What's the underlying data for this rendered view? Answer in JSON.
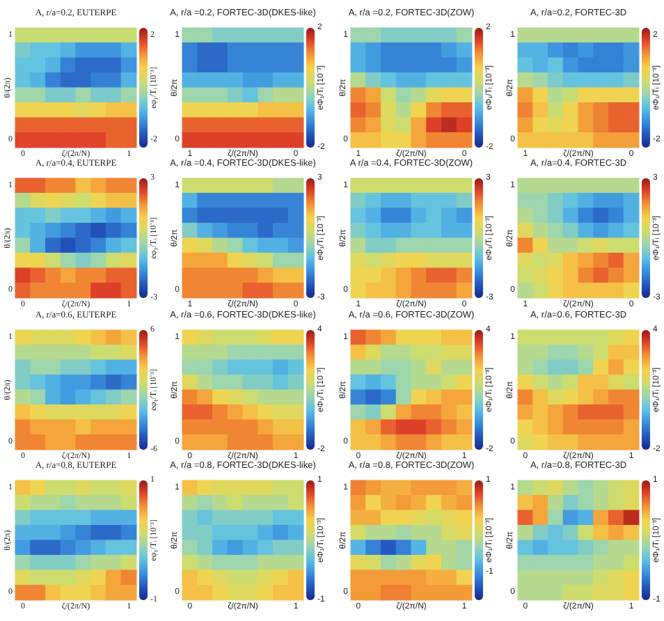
{
  "chart_data": [
    {
      "type": "heatmap",
      "title": "A, r/a=0.2, EUTERPE",
      "xlabel": "ζ/(2π/N)",
      "ylabel": "θ/(2π)",
      "clabel": "eφ₁/Tᵢ [10⁻³]",
      "categories": [
        "0",
        null,
        null,
        null,
        null,
        null,
        null,
        "1"
      ],
      "y_categories": [
        "1",
        null,
        null,
        null,
        null,
        null,
        null,
        "0"
      ],
      "clim": [
        -2.3,
        2.3
      ],
      "cticks": [
        -2,
        2
      ],
      "cells": [
        [
          0.2,
          0.2,
          0.2,
          0.2,
          0.2,
          0.2,
          0.2,
          0.2
        ],
        [
          -0.5,
          -0.7,
          -0.7,
          -0.9,
          -1.2,
          -1.2,
          -1.2,
          -0.9
        ],
        [
          -0.7,
          -0.7,
          -0.9,
          -1.4,
          -1.6,
          -1.6,
          -1.6,
          -1.2
        ],
        [
          -0.7,
          -0.9,
          -1.4,
          -1.6,
          -1.6,
          -1.4,
          -1.4,
          -0.9
        ],
        [
          -0.2,
          -0.2,
          -0.5,
          -0.5,
          -0.2,
          -0.5,
          -0.5,
          -0.2
        ],
        [
          0.7,
          0.7,
          0.7,
          0.7,
          0.5,
          0.7,
          0.9,
          0.9
        ],
        [
          1.6,
          1.6,
          1.6,
          1.6,
          1.6,
          1.6,
          1.6,
          1.6
        ],
        [
          1.8,
          1.8,
          1.8,
          1.8,
          1.8,
          1.8,
          1.6,
          1.6
        ]
      ]
    },
    {
      "type": "heatmap",
      "title": "A, r/a =0.2, FORTEC-3D(DKES-like)",
      "xlabel": "ζ/(2π/N)",
      "ylabel": "θ/2π",
      "clabel": "eΦ₁/Tᵢ [10⁻³]",
      "categories": [
        "1",
        null,
        null,
        null,
        null,
        null,
        null,
        "0"
      ],
      "y_categories": [
        "1",
        null,
        null,
        null,
        null,
        null,
        null,
        "0"
      ],
      "clim": [
        -2,
        2
      ],
      "cticks": [
        -2,
        2
      ],
      "cells": [
        [
          -0.2,
          -0.2,
          -0.4,
          -0.4,
          -0.4,
          -0.4,
          -0.4,
          -0.4
        ],
        [
          -1.2,
          -1.4,
          -1.4,
          -1.2,
          -1.2,
          -1.2,
          -1.2,
          -1.2
        ],
        [
          -1.2,
          -1.4,
          -1.4,
          -1.2,
          -1.2,
          -1.2,
          -1.2,
          -1.2
        ],
        [
          -0.8,
          -0.8,
          -0.8,
          -0.8,
          -1,
          -1,
          -0.8,
          -0.8
        ],
        [
          -0.2,
          -0.2,
          -0.2,
          -0.4,
          -0.6,
          -0.2,
          0,
          0
        ],
        [
          0.6,
          0.6,
          0.6,
          0.6,
          0.6,
          0.8,
          0.8,
          0.8
        ],
        [
          1.4,
          1.4,
          1.4,
          1.4,
          1.4,
          1.4,
          1.4,
          1.4
        ],
        [
          1.6,
          1.6,
          1.6,
          1.6,
          1.6,
          1.6,
          1.6,
          1.6
        ]
      ]
    },
    {
      "type": "heatmap",
      "title": "A, r/a =0.2, FORTEC-3D(ZOW)",
      "xlabel": "ζ/(2π/N)",
      "ylabel": "θ/2π",
      "clabel": "eΦ₁/Tᵢ [10⁻³]",
      "categories": [
        "1",
        null,
        null,
        null,
        null,
        null,
        null,
        "0"
      ],
      "y_categories": [
        "1",
        null,
        null,
        null,
        null,
        null,
        null,
        "0"
      ],
      "clim": [
        -2,
        2
      ],
      "cticks": [
        -2,
        2
      ],
      "cells": [
        [
          -0.2,
          -0.2,
          -0.4,
          -0.4,
          -0.4,
          -0.4,
          -0.4,
          -0.2
        ],
        [
          -0.8,
          -1,
          -1.2,
          -1.2,
          -1.2,
          -1.2,
          -1,
          -0.8
        ],
        [
          -0.8,
          -1,
          -1.2,
          -1.2,
          -1.2,
          -1.2,
          -1.2,
          -1
        ],
        [
          0,
          -0.4,
          -0.6,
          -0.8,
          -0.8,
          -0.6,
          -0.6,
          -0.6
        ],
        [
          1.2,
          1,
          0.2,
          -0.2,
          0,
          0.4,
          0.6,
          0.6
        ],
        [
          1.4,
          1.2,
          0.4,
          0,
          0.6,
          1.2,
          1.4,
          1.4
        ],
        [
          1.2,
          1,
          0.4,
          0.2,
          1,
          1.6,
          1.8,
          1.6
        ],
        [
          0.8,
          0.8,
          0.6,
          0.6,
          1,
          1.2,
          1.2,
          1.2
        ]
      ]
    },
    {
      "type": "heatmap",
      "title": "A, r/a=0.2, FORTEC-3D",
      "xlabel": "ζ/(2π/N)",
      "ylabel": "θ/2π",
      "clabel": "eΦ₁/Tᵢ [10⁻³]",
      "categories": [
        "1",
        null,
        null,
        null,
        null,
        null,
        null,
        "0"
      ],
      "y_categories": [
        "1",
        null,
        null,
        null,
        null,
        null,
        null,
        "0"
      ],
      "clim": [
        -2.3,
        2.3
      ],
      "cticks": [
        -2,
        2
      ],
      "cells": [
        [
          0,
          0,
          0,
          0,
          0,
          0,
          0,
          0
        ],
        [
          -0.9,
          -0.9,
          -1.2,
          -1.4,
          -1.2,
          -1.4,
          -1.4,
          -1.2
        ],
        [
          -0.7,
          -0.9,
          -0.7,
          -1.2,
          -1.4,
          -1.4,
          -1.4,
          -1.2
        ],
        [
          0,
          -0.2,
          -0.5,
          -0.7,
          -0.7,
          -0.7,
          -0.7,
          -0.5
        ],
        [
          1.2,
          0.7,
          0,
          0.2,
          0.7,
          0.7,
          0.7,
          0.7
        ],
        [
          1.4,
          0.9,
          0.2,
          0.7,
          1.2,
          1.4,
          1.6,
          1.6
        ],
        [
          1.2,
          0.7,
          0.5,
          0.7,
          1.2,
          1.4,
          1.6,
          1.6
        ],
        [
          0.9,
          0.9,
          0.9,
          0.9,
          0.9,
          1.2,
          1.2,
          1.2
        ]
      ]
    },
    {
      "type": "heatmap",
      "title": "A, r/a=0.4, EUTERPE",
      "xlabel": "ζ/(2π/N)",
      "ylabel": "θ/(2π)",
      "clabel": "eφ₁/Tᵢ [10⁻³]",
      "categories": [
        "0",
        null,
        null,
        null,
        null,
        null,
        null,
        "1"
      ],
      "y_categories": [
        "1",
        null,
        null,
        null,
        null,
        null,
        null,
        "0"
      ],
      "clim": [
        -3,
        3
      ],
      "cticks": [
        -3,
        3
      ],
      "cells": [
        [
          2.1,
          2.1,
          1.8,
          1.8,
          1.2,
          1.5,
          1.8,
          1.8
        ],
        [
          0,
          0.6,
          0.9,
          0.6,
          0.3,
          0.9,
          1.2,
          1.2
        ],
        [
          -0.9,
          -0.9,
          -0.6,
          -0.9,
          -0.9,
          -1.2,
          -1.5,
          -1.2
        ],
        [
          -0.9,
          -1.2,
          -1.5,
          -1.8,
          -2.1,
          -2.4,
          -2.1,
          -1.8
        ],
        [
          -0.3,
          -1.2,
          -2.1,
          -2.4,
          -2.1,
          -1.8,
          -1.2,
          -0.9
        ],
        [
          0.9,
          0.9,
          0.3,
          -0.3,
          -0.6,
          -0.3,
          0.3,
          0.6
        ],
        [
          2.4,
          2.1,
          1.8,
          1.5,
          1.8,
          1.8,
          2.1,
          2.1
        ],
        [
          2.1,
          1.8,
          1.8,
          1.8,
          1.8,
          2.4,
          2.4,
          2.1
        ]
      ]
    },
    {
      "type": "heatmap",
      "title": "A, r/a =0.4, FORTEC-3D(DKES-like)",
      "xlabel": "ζ/(2π/N)",
      "ylabel": "θ/2π",
      "clabel": "eΦ₁/Tᵢ [10⁻³]",
      "categories": [
        "1",
        null,
        null,
        null,
        null,
        null,
        null,
        "0"
      ],
      "y_categories": [
        "1",
        null,
        null,
        null,
        null,
        null,
        null,
        "0"
      ],
      "clim": [
        -3,
        3
      ],
      "cticks": [
        -3,
        3
      ],
      "cells": [
        [
          0.3,
          0.3,
          0.3,
          0.3,
          0.3,
          0.3,
          0,
          0
        ],
        [
          -1.2,
          -1.8,
          -1.8,
          -1.8,
          -1.8,
          -1.8,
          -1.8,
          -1.8
        ],
        [
          -1.8,
          -2.1,
          -2.1,
          -2.1,
          -2.1,
          -2.1,
          -2.1,
          -1.8
        ],
        [
          -0.6,
          -1.2,
          -1.5,
          -1.8,
          -1.8,
          -2.1,
          -1.8,
          -1.8
        ],
        [
          0.9,
          0.6,
          0,
          -0.3,
          -0.9,
          -1.2,
          -1.2,
          -1.5
        ],
        [
          1.5,
          1.5,
          1.5,
          0.9,
          0.6,
          0.3,
          -0.3,
          -0.3
        ],
        [
          1.8,
          1.8,
          1.8,
          1.8,
          1.8,
          1.5,
          1.2,
          1.2
        ],
        [
          1.8,
          1.8,
          1.8,
          1.8,
          2.1,
          2.1,
          1.8,
          1.8
        ]
      ]
    },
    {
      "type": "heatmap",
      "title": "A r/a =0.4, FORTEC-3D(ZOW)",
      "xlabel": "ζ/(2π/N)",
      "ylabel": "θ/2π",
      "clabel": "eΦ₁/Tᵢ [10⁻³]",
      "categories": [
        "1",
        null,
        null,
        null,
        null,
        null,
        null,
        "0"
      ],
      "y_categories": [
        "1",
        null,
        null,
        null,
        null,
        null,
        null,
        "0"
      ],
      "clim": [
        -3,
        3
      ],
      "cticks": [
        -3,
        3
      ],
      "cells": [
        [
          0.3,
          0.3,
          0.3,
          0.3,
          0.3,
          0.3,
          0.3,
          0.3
        ],
        [
          -0.6,
          -0.9,
          -1.2,
          -1.2,
          -0.9,
          -0.9,
          -0.9,
          -0.6
        ],
        [
          -0.9,
          -1.2,
          -1.8,
          -1.8,
          -1.2,
          -0.9,
          -1.2,
          -1.5
        ],
        [
          -0.6,
          -0.9,
          -1.2,
          -1.2,
          -0.9,
          -0.9,
          -1.2,
          -1.2
        ],
        [
          0,
          -0.6,
          -0.6,
          -0.3,
          -0.3,
          -0.3,
          -0.3,
          -0.3
        ],
        [
          0.6,
          0.3,
          0.6,
          0.9,
          0.9,
          0.6,
          0.6,
          0.6
        ],
        [
          0.9,
          0.9,
          1.2,
          1.5,
          1.8,
          2.1,
          2.1,
          1.8
        ],
        [
          0.9,
          1.2,
          1.2,
          1.5,
          1.8,
          1.8,
          1.8,
          1.5
        ]
      ]
    },
    {
      "type": "heatmap",
      "title": "A, r/a=0.4, FORTEC-3D",
      "xlabel": "ζ/(2π/N)",
      "ylabel": "θ/2π",
      "clabel": "eΦ₁/Tᵢ [10⁻³]",
      "categories": [
        "1",
        null,
        null,
        null,
        null,
        null,
        null,
        "0"
      ],
      "y_categories": [
        "1",
        null,
        null,
        null,
        null,
        null,
        null,
        "0"
      ],
      "clim": [
        -3,
        3
      ],
      "cticks": [
        -3,
        3
      ],
      "cells": [
        [
          0,
          0,
          0,
          0,
          0,
          0,
          0,
          0
        ],
        [
          -0.3,
          -0.3,
          -0.6,
          -0.9,
          -1.2,
          -1.5,
          -1.5,
          -1.2
        ],
        [
          0,
          -0.3,
          -0.6,
          -1.2,
          -1.8,
          -2.1,
          -1.8,
          -1.2
        ],
        [
          0.6,
          0,
          -0.3,
          -0.6,
          -1.2,
          -1.5,
          -1.2,
          -0.9
        ],
        [
          1.8,
          0.9,
          0,
          0,
          0.3,
          0.6,
          0.3,
          0.3
        ],
        [
          0.6,
          0.3,
          0.6,
          1.2,
          1.5,
          1.8,
          2.1,
          1.5
        ],
        [
          0.3,
          0.6,
          0.9,
          1.2,
          1.8,
          2.1,
          1.8,
          1.5
        ],
        [
          0,
          0.3,
          0.9,
          1.2,
          1.2,
          1.2,
          1.2,
          0.9
        ]
      ]
    },
    {
      "type": "heatmap",
      "title": "A, r/a=0.6, EUTERPE",
      "xlabel": "ζ/(2π/N)",
      "ylabel": "θ/(2π)",
      "clabel": "eφ₁/Tᵢ [10⁻³]",
      "categories": [
        "0",
        null,
        null,
        null,
        null,
        null,
        null,
        "1"
      ],
      "y_categories": [
        "1",
        null,
        null,
        null,
        null,
        null,
        null,
        "0"
      ],
      "clim": [
        -6,
        6
      ],
      "cticks": [
        -6,
        6
      ],
      "cells": [
        [
          1.8,
          1.2,
          1.2,
          1.2,
          1.8,
          2.4,
          3,
          2.4
        ],
        [
          0,
          0,
          0,
          0,
          0,
          0.6,
          0.6,
          1.2
        ],
        [
          -1.2,
          -0.6,
          -0.6,
          -1.2,
          -1.2,
          -1.8,
          -2.4,
          -2.4
        ],
        [
          -1.2,
          -1.8,
          -2.4,
          -3,
          -3,
          -3.6,
          -4.2,
          -3.6
        ],
        [
          0,
          -0.6,
          -2.4,
          -3,
          -2.4,
          -1.8,
          -1.2,
          -0.6
        ],
        [
          2.4,
          1.8,
          1.2,
          1.2,
          1.2,
          1.2,
          1.2,
          1.8
        ],
        [
          3.6,
          3,
          3,
          3,
          2.4,
          3,
          3,
          3
        ],
        [
          3.6,
          3.6,
          3,
          3,
          3.6,
          3.6,
          3.6,
          3.6
        ]
      ]
    },
    {
      "type": "heatmap",
      "title": "A, r/a =0.6, FORTEC-3D(DKES-like)",
      "xlabel": "ζ/(2π/N)",
      "ylabel": "θ/2π",
      "clabel": "eΦ₁/Tᵢ [10⁻³]",
      "categories": [
        "0",
        null,
        null,
        null,
        null,
        null,
        null,
        "1"
      ],
      "y_categories": [
        "1",
        null,
        null,
        null,
        null,
        null,
        null,
        "0"
      ],
      "clim": [
        -2,
        4
      ],
      "cticks": [
        -2,
        4
      ],
      "cells": [
        [
          1.9,
          1.6,
          1.3,
          1.3,
          1.3,
          1.6,
          1.9,
          1.9
        ],
        [
          1,
          1,
          1,
          0.7,
          0.7,
          0.7,
          0.7,
          0.7
        ],
        [
          0.7,
          0.7,
          0.4,
          0.1,
          0.1,
          0.1,
          -0.2,
          0.1
        ],
        [
          1.6,
          1,
          0.7,
          0.7,
          0.4,
          0.4,
          0.1,
          0.4
        ],
        [
          2.8,
          2.5,
          1.9,
          1.6,
          1.3,
          1,
          1,
          1
        ],
        [
          3.1,
          3.1,
          2.8,
          2.5,
          2.2,
          1.9,
          1.6,
          1.6
        ],
        [
          2.8,
          2.8,
          2.8,
          2.8,
          2.8,
          2.5,
          2.2,
          2.2
        ],
        [
          2.5,
          2.5,
          2.5,
          2.8,
          2.8,
          2.8,
          2.5,
          2.5
        ]
      ]
    },
    {
      "type": "heatmap",
      "title": "A, r/a =0.6, FORTEC-3D(ZOW)",
      "xlabel": "ζ/(2π/N)",
      "ylabel": "θ/2π",
      "clabel": "eΦ₁/Tᵢ [10⁻³]",
      "categories": [
        "0",
        null,
        null,
        null,
        null,
        null,
        null,
        "1"
      ],
      "y_categories": [
        "1",
        null,
        null,
        null,
        null,
        null,
        null,
        "0"
      ],
      "clim": [
        -2,
        4
      ],
      "cticks": [
        -2,
        4
      ],
      "cells": [
        [
          3.1,
          2.8,
          2.5,
          1.9,
          1.9,
          1.9,
          2.2,
          2.2
        ],
        [
          2.2,
          1.6,
          1,
          1,
          1.3,
          1.3,
          1.6,
          1.6
        ],
        [
          1,
          1,
          0.7,
          0.7,
          1,
          1.6,
          1,
          1
        ],
        [
          0.1,
          -0.2,
          0.1,
          0.7,
          1,
          1,
          1.3,
          1.9
        ],
        [
          -0.8,
          -1.1,
          -0.8,
          0.7,
          1.9,
          2.2,
          2.5,
          2.5
        ],
        [
          0.7,
          0.4,
          1.3,
          2.5,
          2.8,
          2.8,
          2.5,
          2.2
        ],
        [
          2.2,
          2.5,
          3.1,
          3.4,
          3.4,
          3.1,
          2.8,
          2.5
        ],
        [
          2.2,
          2.2,
          2.5,
          2.8,
          2.8,
          2.5,
          2.2,
          2.2
        ]
      ]
    },
    {
      "type": "heatmap",
      "title": "A, r/a=0.6, FORTEC-3D",
      "xlabel": "ζ/(2π/N)",
      "ylabel": "θ/2π",
      "clabel": "eΦ₁/Tᵢ [10⁻³]",
      "categories": [
        "0",
        null,
        null,
        null,
        null,
        null,
        null,
        "1"
      ],
      "y_categories": [
        "1",
        null,
        null,
        null,
        null,
        null,
        null,
        "0"
      ],
      "clim": [
        -2,
        4
      ],
      "cticks": [
        -2,
        4
      ],
      "cells": [
        [
          1.3,
          1.3,
          1.3,
          1.3,
          1.3,
          1.3,
          1.6,
          1.9
        ],
        [
          1,
          1,
          0.7,
          0.7,
          1,
          1.3,
          2.2,
          2.2
        ],
        [
          1,
          0.7,
          0.4,
          0.4,
          0.7,
          1.9,
          2.5,
          1.9
        ],
        [
          1.9,
          1.3,
          1,
          1.3,
          2.2,
          2.2,
          1.6,
          1.3
        ],
        [
          2.8,
          2.2,
          1.6,
          1.9,
          2.2,
          2.5,
          2.8,
          2.8
        ],
        [
          2.5,
          2.2,
          2.5,
          2.8,
          3.1,
          3.1,
          3.1,
          2.8
        ],
        [
          1.9,
          2.2,
          2.5,
          2.8,
          2.8,
          2.8,
          2.8,
          2.5
        ],
        [
          1.6,
          1.9,
          2.2,
          2.2,
          2.5,
          2.5,
          2.5,
          2.5
        ]
      ]
    },
    {
      "type": "heatmap",
      "title": "A, r/a=0.8, EUTERPE",
      "xlabel": "ζ/(2π/N)",
      "ylabel": "θ/(2π)",
      "clabel": "eφ₁/Tᵢ [10⁻³]",
      "categories": [
        "0",
        null,
        null,
        null,
        null,
        null,
        null,
        "1"
      ],
      "y_categories": [
        "1",
        null,
        null,
        null,
        null,
        null,
        null,
        "0"
      ],
      "clim": [
        -1,
        1
      ],
      "cticks": [
        -1,
        1
      ],
      "cells": [
        [
          0.4,
          0.3,
          0.1,
          0.1,
          0.2,
          0.1,
          0.1,
          0.2
        ],
        [
          0.1,
          0,
          0,
          -0.1,
          0,
          0,
          0,
          0.1
        ],
        [
          -0.2,
          -0.3,
          -0.3,
          -0.3,
          -0.3,
          -0.4,
          -0.4,
          -0.4
        ],
        [
          -0.4,
          -0.4,
          -0.4,
          -0.5,
          -0.6,
          -0.7,
          -0.7,
          -0.6
        ],
        [
          -0.5,
          -0.7,
          -0.7,
          -0.6,
          -0.5,
          -0.4,
          -0.3,
          -0.3
        ],
        [
          -0.1,
          -0.2,
          -0.2,
          -0.2,
          -0.1,
          0,
          0,
          0.1
        ],
        [
          0.2,
          0.1,
          0.1,
          0.1,
          0.2,
          0.3,
          0.5,
          0.6
        ],
        [
          0.6,
          0.6,
          0.4,
          0.3,
          0.3,
          0.4,
          0.5,
          0.5
        ]
      ]
    },
    {
      "type": "heatmap",
      "title": "A, r/a =0.8, FORTEC-3D(DKES-like)",
      "xlabel": "ζ/(2π/N)",
      "ylabel": "θ/2π",
      "clabel": "eΦ₁/Tᵢ [10⁻³]",
      "categories": [
        "0",
        null,
        null,
        null,
        null,
        null,
        null,
        "1"
      ],
      "y_categories": [
        "1",
        null,
        null,
        null,
        null,
        null,
        null,
        "0"
      ],
      "clim": [
        -1,
        1
      ],
      "cticks": [
        -1,
        1
      ],
      "cells": [
        [
          0.4,
          0.3,
          0.2,
          0.2,
          0.2,
          0.2,
          0.1,
          0.1
        ],
        [
          0,
          -0.1,
          0,
          0.1,
          0,
          0,
          0,
          0.1
        ],
        [
          -0.2,
          -0.3,
          -0.2,
          -0.2,
          -0.2,
          -0.2,
          -0.3,
          -0.3
        ],
        [
          -0.2,
          -0.2,
          -0.3,
          -0.3,
          -0.3,
          -0.4,
          -0.5,
          -0.4
        ],
        [
          -0.1,
          -0.2,
          -0.4,
          -0.5,
          -0.4,
          -0.3,
          -0.2,
          -0.2
        ],
        [
          0.1,
          0,
          -0.1,
          -0.1,
          -0.1,
          0,
          0,
          0
        ],
        [
          0.4,
          0.3,
          0.2,
          0.1,
          0.1,
          0.2,
          0.3,
          0.4
        ],
        [
          0.4,
          0.4,
          0.3,
          0.2,
          0.2,
          0.3,
          0.4,
          0.4
        ]
      ]
    },
    {
      "type": "heatmap",
      "title": "A, r/a =0.8, FORTEC-3D(ZOW)",
      "xlabel": "ζ/(2π/N)",
      "ylabel": "θ/2π",
      "clabel": "eΦ₁/Tᵢ [10⁻³]",
      "categories": [
        "0",
        null,
        null,
        null,
        null,
        null,
        null,
        "1"
      ],
      "y_categories": [
        "1",
        null,
        null,
        null,
        null,
        null,
        null,
        "0"
      ],
      "clim": [
        -1.6,
        1
      ],
      "cticks": [
        -1,
        1
      ],
      "cells": [
        [
          0.5,
          0.4,
          0.3,
          0.3,
          0.4,
          0.4,
          0.4,
          0.3
        ],
        [
          0.4,
          0.1,
          0.3,
          0.4,
          0.3,
          0.1,
          0.3,
          0.4
        ],
        [
          0.3,
          0.3,
          0.1,
          0.1,
          0,
          -0.1,
          0,
          0.1
        ],
        [
          -0.1,
          -0.3,
          -0.3,
          -0.4,
          -0.3,
          -0.3,
          -0.1,
          0
        ],
        [
          -0.8,
          -1.1,
          -1.3,
          -1.1,
          -0.8,
          -0.3,
          -0.3,
          -0.4
        ],
        [
          0,
          -0.1,
          -0.4,
          -0.3,
          0,
          0.1,
          -0.3,
          -0.4
        ],
        [
          0.4,
          0.4,
          0.4,
          0.4,
          0.4,
          0.3,
          0.3,
          0.1
        ],
        [
          0.4,
          0.4,
          0.5,
          0.5,
          0.4,
          0.4,
          0.4,
          0.4
        ]
      ]
    },
    {
      "type": "heatmap",
      "title": "A, r/a=0.8, FORTEC-3D",
      "xlabel": "ζ/(2π/N)",
      "ylabel": "θ/2π",
      "clabel": "eΦ₁/Tᵢ [10⁻³]",
      "categories": [
        "0",
        null,
        null,
        null,
        null,
        null,
        null,
        "1"
      ],
      "y_categories": [
        "1",
        null,
        null,
        null,
        null,
        null,
        null,
        "0"
      ],
      "clim": [
        -1,
        1
      ],
      "cticks": [
        -1,
        1
      ],
      "cells": [
        [
          0,
          0.1,
          0.2,
          0,
          -0.1,
          0,
          0.1,
          0.2
        ],
        [
          0.4,
          0.5,
          0,
          -0.2,
          -0.1,
          0,
          0.1,
          0.2
        ],
        [
          0.7,
          0.5,
          -0.1,
          -0.5,
          -0.4,
          0.5,
          0.7,
          0.9
        ],
        [
          0,
          -0.2,
          -0.3,
          -0.2,
          0.1,
          0.4,
          0.5,
          0.4
        ],
        [
          -0.3,
          -0.4,
          -0.3,
          -0.3,
          -0.2,
          -0.1,
          0,
          0
        ],
        [
          -0.1,
          -0.1,
          -0.1,
          -0.1,
          -0.1,
          0,
          0,
          0.1
        ],
        [
          0,
          0,
          0,
          0,
          0,
          0.1,
          0.2,
          0.3
        ],
        [
          0,
          0,
          0,
          0.1,
          0.1,
          0.2,
          0.2,
          0.3
        ]
      ]
    }
  ]
}
